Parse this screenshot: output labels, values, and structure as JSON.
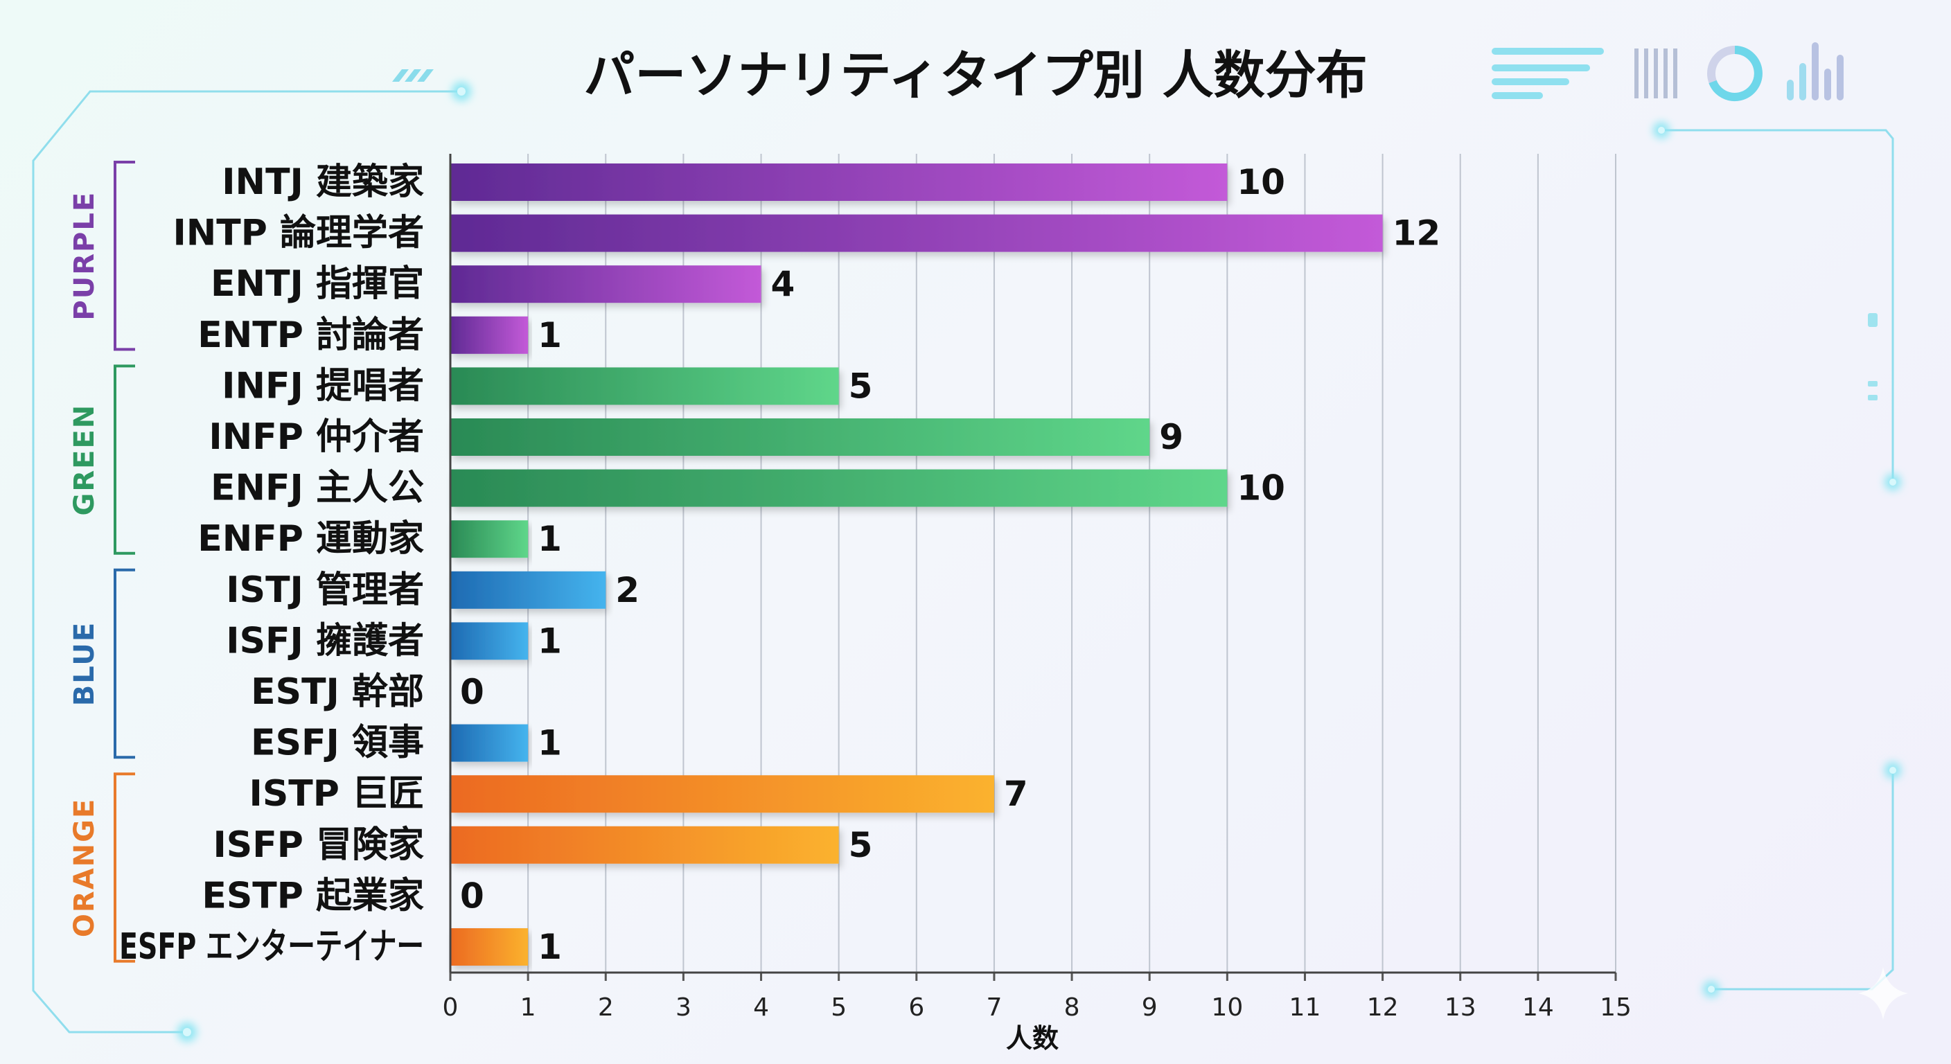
{
  "chart_data": {
    "type": "bar",
    "orientation": "horizontal",
    "title": "パーソナリティタイプ別 人数分布",
    "xlabel": "人数",
    "xlim": [
      0,
      15
    ],
    "xticks": [
      0,
      1,
      2,
      3,
      4,
      5,
      6,
      7,
      8,
      9,
      10,
      11,
      12,
      13,
      14,
      15
    ],
    "grid": true,
    "categories": [
      "INTJ 建築家",
      "INTP 論理学者",
      "ENTJ 指揮官",
      "ENTP 討論者",
      "INFJ 提唱者",
      "INFP 仲介者",
      "ENFJ 主人公",
      "ENFP 運動家",
      "ISTJ 管理者",
      "ISFJ 擁護者",
      "ESTJ 幹部",
      "ESFJ 領事",
      "ISTP 巨匠",
      "ISFP 冒険家",
      "ESTP 起業家",
      "ESFP エンターテイナー"
    ],
    "values": [
      10,
      12,
      4,
      1,
      5,
      9,
      10,
      1,
      2,
      1,
      0,
      1,
      7,
      5,
      0,
      1
    ],
    "groups": [
      {
        "name": "PURPLE",
        "color": "#7a3fa8",
        "bar_from": "#5f2a94",
        "bar_to": "#c35ad8",
        "start": 0,
        "count": 4
      },
      {
        "name": "GREEN",
        "color": "#2e9960",
        "bar_from": "#2a8a55",
        "bar_to": "#5fd68a",
        "start": 4,
        "count": 4
      },
      {
        "name": "BLUE",
        "color": "#2a6aaa",
        "bar_from": "#1e6ab2",
        "bar_to": "#45b4ee",
        "start": 8,
        "count": 4
      },
      {
        "name": "ORANGE",
        "color": "#e87a2a",
        "bar_from": "#ec6a22",
        "bar_to": "#fbb22e",
        "start": 12,
        "count": 4
      }
    ]
  }
}
